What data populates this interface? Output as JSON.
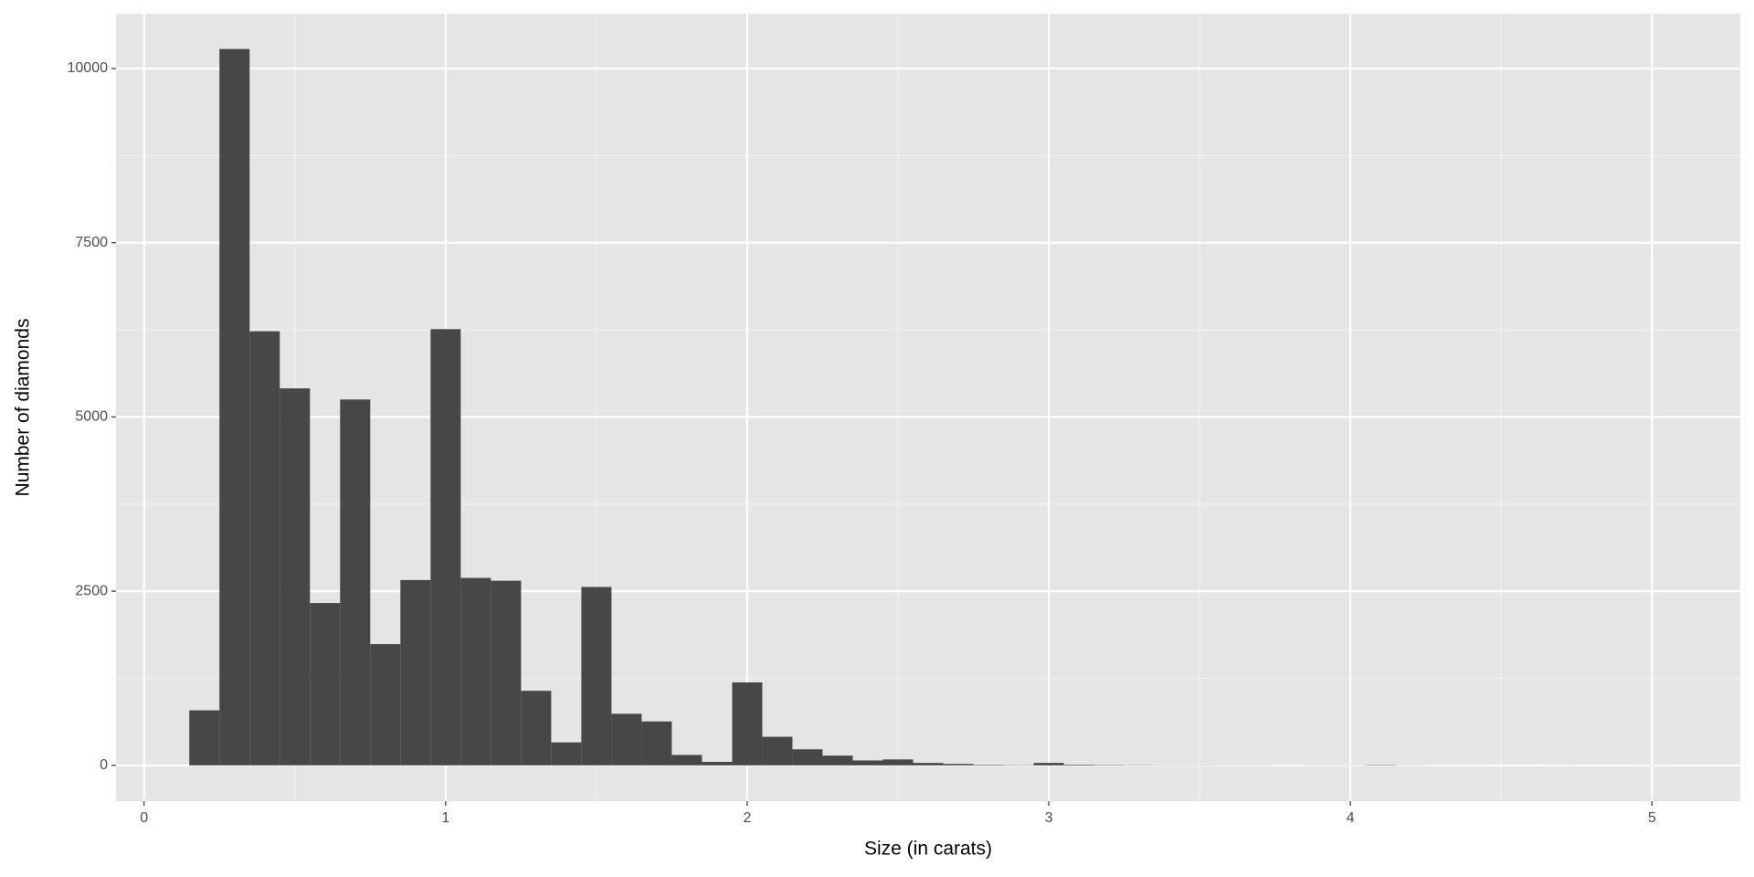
{
  "chart_data": {
    "type": "histogram",
    "xlabel": "Size (in carats)",
    "ylabel": "Number of diamonds",
    "bins": [
      0.15,
      0.25,
      0.35,
      0.45,
      0.55,
      0.65,
      0.75,
      0.85,
      0.95,
      1.05,
      1.15,
      1.25,
      1.35,
      1.45,
      1.55,
      1.65,
      1.75,
      1.85,
      1.95,
      2.05,
      2.15,
      2.25,
      2.35,
      2.45,
      2.55,
      2.65,
      2.75,
      2.85,
      2.95,
      3.05,
      3.15,
      3.25,
      3.35,
      3.45,
      3.55,
      3.65,
      3.75,
      3.85,
      3.95,
      4.05,
      4.15,
      4.25,
      4.35,
      4.45,
      4.55,
      4.65,
      4.75,
      4.85,
      4.95,
      5.05
    ],
    "values": [
      790,
      10280,
      6230,
      5410,
      2330,
      5250,
      1740,
      2660,
      6260,
      2690,
      2650,
      1070,
      330,
      2560,
      740,
      630,
      150,
      50,
      1190,
      410,
      230,
      140,
      70,
      85,
      35,
      20,
      8,
      5,
      35,
      10,
      6,
      4,
      3,
      3,
      2,
      2,
      1,
      2,
      2,
      6,
      2,
      1,
      1,
      0,
      0,
      1,
      0,
      0,
      1
    ],
    "color": "#474747",
    "xlim": [
      -0.093,
      5.293
    ],
    "ylim": [
      -514,
      10787
    ],
    "xticks": [
      0,
      1,
      2,
      3,
      4,
      5
    ],
    "yticks": [
      0,
      2500,
      5000,
      7500,
      10000
    ],
    "x_minor_ticks": [
      0.5,
      1.5,
      2.5,
      3.5,
      4.5
    ],
    "y_minor_ticks": [
      1250,
      3750,
      6250,
      8750
    ],
    "grid": true
  }
}
